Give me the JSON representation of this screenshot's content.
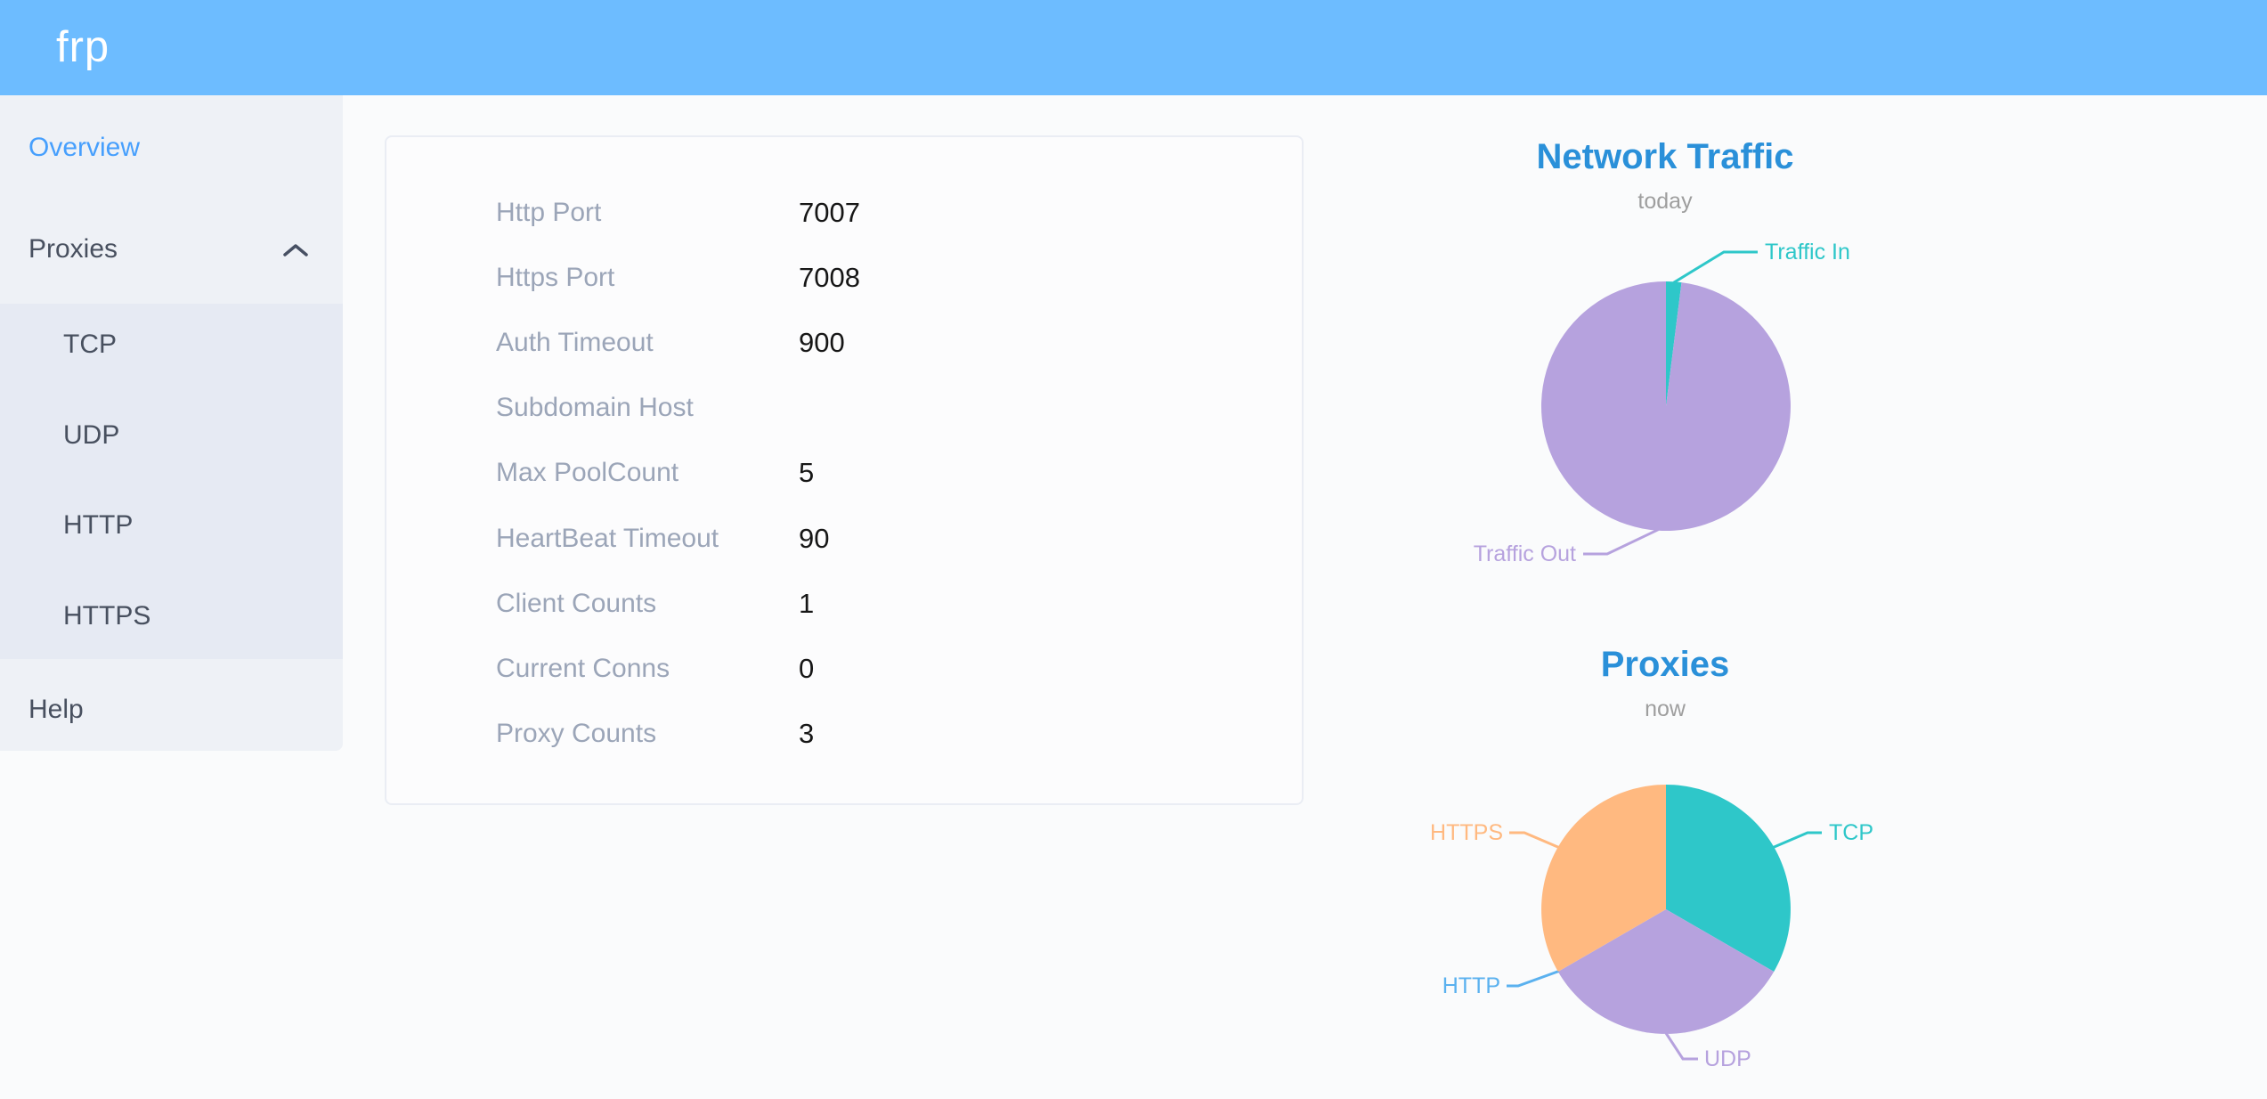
{
  "header": {
    "logo": "frp",
    "background": "#6dbcff"
  },
  "sidebar": {
    "active_color": "#469ffd",
    "text_color": "#48505f",
    "items": [
      {
        "label": "Overview",
        "active": true
      },
      {
        "label": "Proxies",
        "expanded": true,
        "children": [
          "TCP",
          "UDP",
          "HTTP",
          "HTTPS"
        ]
      },
      {
        "label": "Help"
      }
    ]
  },
  "config_panel": {
    "label_color": "#9ba5b8",
    "value_color": "#161616",
    "rows": [
      {
        "label": "Http Port",
        "value": "7007"
      },
      {
        "label": "Https Port",
        "value": "7008"
      },
      {
        "label": "Auth Timeout",
        "value": "900"
      },
      {
        "label": "Subdomain Host",
        "value": ""
      },
      {
        "label": "Max PoolCount",
        "value": "5"
      },
      {
        "label": "HeartBeat Timeout",
        "value": "90"
      },
      {
        "label": "Client Counts",
        "value": "1"
      },
      {
        "label": "Current Conns",
        "value": "0"
      },
      {
        "label": "Proxy Counts",
        "value": "3"
      }
    ]
  },
  "theme": {
    "title_color": "#2a90d9",
    "subtitle_color": "#9e9e9e"
  },
  "chart_data": [
    {
      "type": "pie",
      "title": "Network Traffic",
      "subtitle": "today",
      "legend_position": "none",
      "value_note": "percent estimated from arc angles",
      "series": [
        {
          "name": "Traffic In",
          "value": 2,
          "color": "#2ec7c9"
        },
        {
          "name": "Traffic Out",
          "value": 98,
          "color": "#b6a2de"
        }
      ]
    },
    {
      "type": "pie",
      "title": "Proxies",
      "subtitle": "now",
      "legend_position": "none",
      "value_note": "proxy counts per type; HTTP slice is zero-width",
      "series": [
        {
          "name": "TCP",
          "value": 1,
          "color": "#2ec7c9"
        },
        {
          "name": "UDP",
          "value": 1,
          "color": "#b6a2de"
        },
        {
          "name": "HTTP",
          "value": 0,
          "color": "#5ab1ef"
        },
        {
          "name": "HTTPS",
          "value": 1,
          "color": "#ffb980"
        }
      ]
    }
  ]
}
